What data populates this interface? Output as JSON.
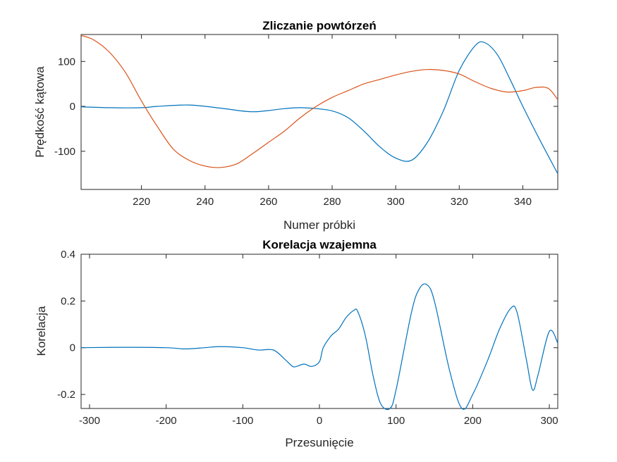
{
  "chart_data": [
    {
      "type": "line",
      "title": "Zliczanie powtórzeń",
      "xlabel": "Numer próbki",
      "ylabel": "Prędkość kątowa",
      "xlim": [
        201,
        351
      ],
      "ylim": [
        -185,
        160
      ],
      "xticks": [
        220,
        240,
        260,
        280,
        300,
        320,
        340
      ],
      "yticks": [
        -100,
        0,
        100
      ],
      "grid": false,
      "series": [
        {
          "color": "#0072BD",
          "x": [
            201,
            210,
            220,
            225,
            235,
            245,
            255,
            265,
            270,
            275,
            280,
            285,
            290,
            295,
            300,
            305,
            310,
            315,
            320,
            325,
            328,
            332,
            336,
            340,
            345,
            351
          ],
          "y": [
            -1,
            -3,
            -3,
            0,
            3,
            -4,
            -12,
            -5,
            -3,
            -5,
            -10,
            -25,
            -55,
            -90,
            -115,
            -120,
            -80,
            -10,
            80,
            135,
            142,
            115,
            60,
            0,
            -70,
            -150
          ]
        },
        {
          "color": "#D95319",
          "x": [
            201,
            205,
            210,
            215,
            220,
            225,
            230,
            235,
            240,
            245,
            250,
            255,
            260,
            265,
            270,
            275,
            280,
            285,
            290,
            295,
            300,
            305,
            310,
            315,
            320,
            325,
            330,
            335,
            340,
            344,
            348,
            351
          ],
          "y": [
            158,
            148,
            120,
            75,
            12,
            -45,
            -95,
            -120,
            -133,
            -136,
            -128,
            -105,
            -80,
            -55,
            -25,
            0,
            20,
            35,
            50,
            60,
            70,
            78,
            82,
            80,
            72,
            55,
            40,
            32,
            35,
            42,
            40,
            15
          ]
        }
      ]
    },
    {
      "type": "line",
      "title": "Korelacja wzajemna",
      "xlabel": "Przesunięcie",
      "ylabel": "Korelacja",
      "xlim": [
        -311,
        311
      ],
      "ylim": [
        -0.26,
        0.4
      ],
      "xticks": [
        -300,
        -200,
        -100,
        0,
        100,
        200,
        300
      ],
      "yticks": [
        -0.2,
        0,
        0.2,
        0.4
      ],
      "grid": false,
      "series": [
        {
          "color": "#0072BD",
          "x": [
            -311,
            -250,
            -200,
            -175,
            -150,
            -130,
            -100,
            -80,
            -60,
            -45,
            -35,
            -30,
            -20,
            -10,
            0,
            5,
            15,
            25,
            35,
            45,
            50,
            60,
            70,
            80,
            92,
            100,
            120,
            130,
            140,
            150,
            170,
            186,
            200,
            220,
            235,
            250,
            258,
            270,
            278,
            285,
            300,
            311
          ],
          "y": [
            0,
            0.002,
            0,
            -0.005,
            0,
            0.005,
            0,
            -0.01,
            -0.01,
            -0.05,
            -0.08,
            -0.08,
            -0.07,
            -0.08,
            -0.06,
            0,
            0.05,
            0.08,
            0.13,
            0.16,
            0.155,
            0.05,
            -0.12,
            -0.24,
            -0.26,
            -0.18,
            0.15,
            0.25,
            0.27,
            0.2,
            -0.1,
            -0.26,
            -0.2,
            -0.05,
            0.08,
            0.17,
            0.15,
            -0.05,
            -0.18,
            -0.12,
            0.07,
            0.02
          ]
        }
      ]
    }
  ]
}
